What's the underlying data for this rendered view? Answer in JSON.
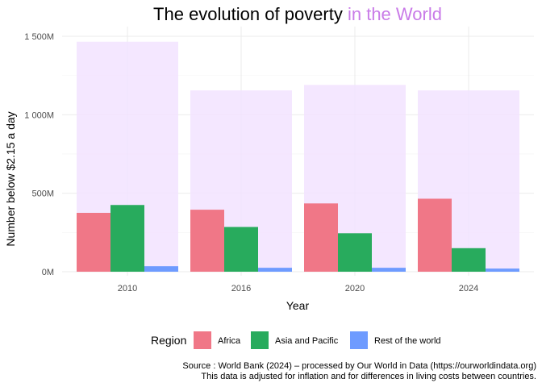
{
  "colors": {
    "total": "#f2e3ff",
    "accent_title": "#c97be8",
    "africa": "#f07787",
    "asia": "#28ab5d",
    "rest": "#6e9bff",
    "grid": "#ebebeb",
    "tick_text": "#4d4d4d"
  },
  "chart_data": {
    "type": "bar",
    "title": {
      "main": "The evolution of poverty ",
      "accent": "in the World"
    },
    "xlabel": "Year",
    "ylabel": "Number below $2.15 a day",
    "categories": [
      "2010",
      "2016",
      "2020",
      "2024"
    ],
    "ylim": [
      0,
      1500
    ],
    "y_ticks": [
      0,
      500,
      1000,
      1500
    ],
    "y_tick_labels": [
      "0M",
      "500M",
      "1 000M",
      "1 500M"
    ],
    "grid": true,
    "background_total": {
      "values": [
        1465,
        1155,
        1190,
        1155
      ]
    },
    "series": [
      {
        "name": "Africa",
        "values": [
          375,
          395,
          435,
          465
        ]
      },
      {
        "name": "Asia and Pacific",
        "values": [
          425,
          285,
          245,
          150
        ]
      },
      {
        "name": "Rest of the world",
        "values": [
          35,
          25,
          25,
          20
        ]
      }
    ],
    "legend": {
      "title": "Region",
      "position": "bottom"
    }
  },
  "caption": {
    "line1": "Source : World Bank (2024) – processed by Our World in Data (https://ourworldindata.org)",
    "line2": "This data is adjusted for inflation and for differences in living costs between countries."
  }
}
